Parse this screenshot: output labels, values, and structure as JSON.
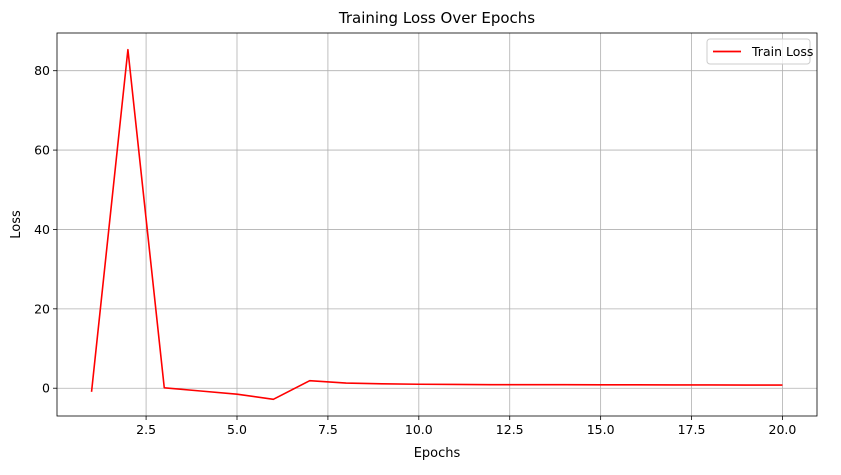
{
  "chart_data": {
    "type": "line",
    "title": "Training Loss Over Epochs",
    "xlabel": "Epochs",
    "ylabel": "Loss",
    "xlim": [
      0.05,
      20.95
    ],
    "ylim": [
      -7.0,
      89.5
    ],
    "xticks": [
      2.5,
      5.0,
      7.5,
      10.0,
      12.5,
      15.0,
      17.5,
      20.0
    ],
    "xtick_labels": [
      "2.5",
      "5.0",
      "7.5",
      "10.0",
      "12.5",
      "15.0",
      "17.5",
      "20.0"
    ],
    "yticks": [
      0,
      20,
      40,
      60,
      80
    ],
    "ytick_labels": [
      "0",
      "20",
      "40",
      "60",
      "80"
    ],
    "grid": true,
    "legend_position": "top-right",
    "series": [
      {
        "name": "Train Loss",
        "color": "#ff0000",
        "x": [
          1,
          2,
          3,
          4,
          5,
          6,
          7,
          8,
          9,
          10,
          11,
          12,
          13,
          14,
          15,
          16,
          17,
          18,
          19,
          20
        ],
        "y": [
          -0.9,
          85.3,
          0.1,
          -0.7,
          -1.5,
          -2.8,
          1.9,
          1.3,
          1.1,
          1.0,
          0.95,
          0.9,
          0.9,
          0.88,
          0.85,
          0.85,
          0.83,
          0.82,
          0.8,
          0.8
        ]
      }
    ]
  }
}
